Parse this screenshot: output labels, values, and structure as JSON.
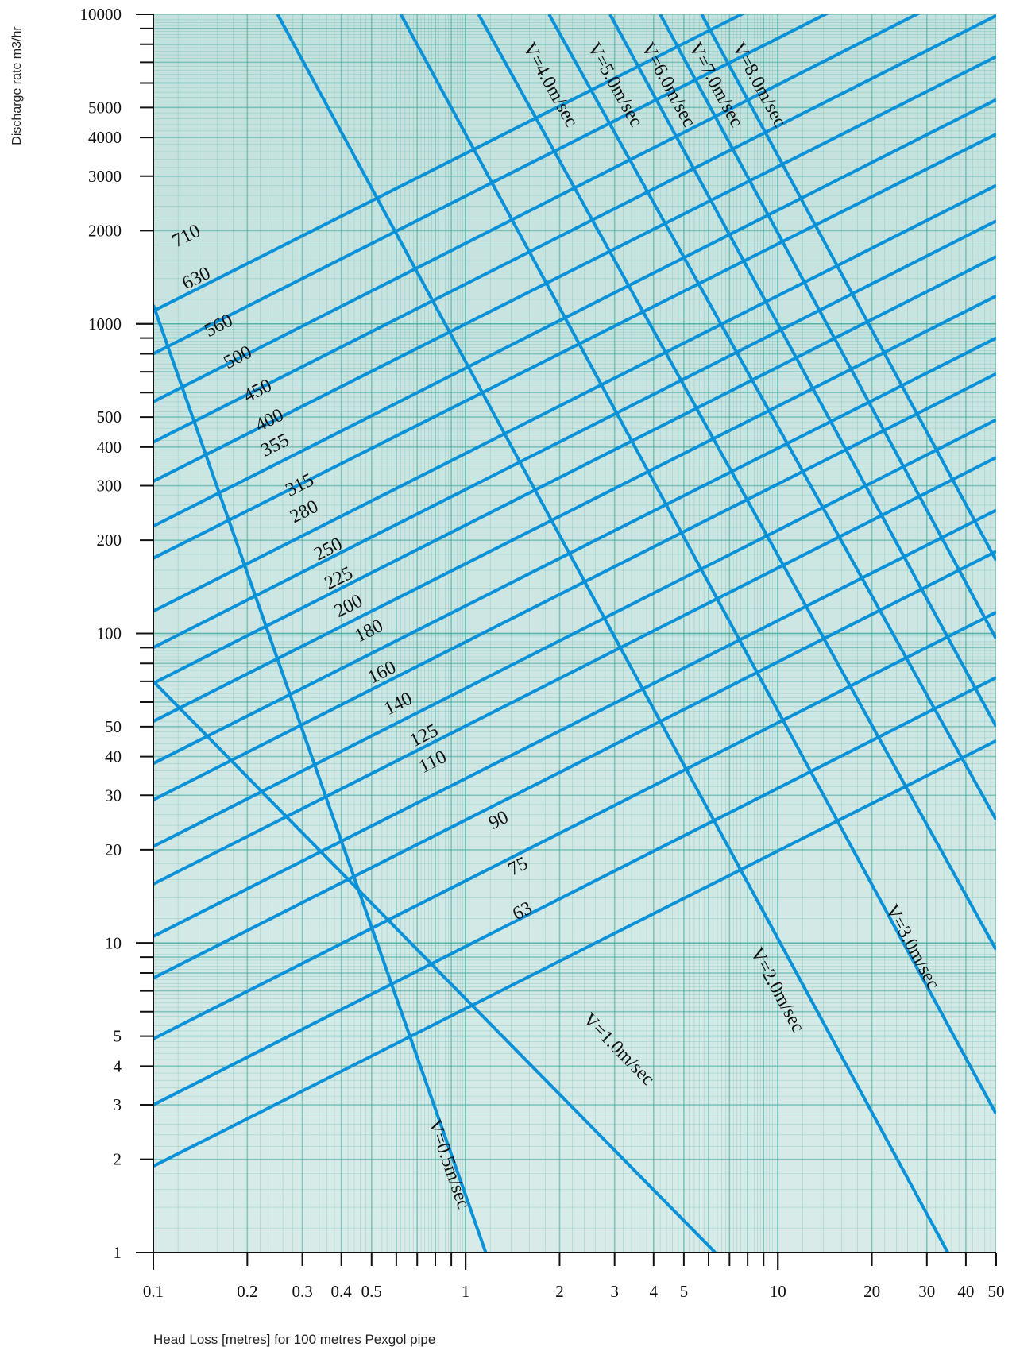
{
  "chart_data": {
    "type": "line",
    "xscale": "log",
    "yscale": "log",
    "xlim": [
      0.1,
      50
    ],
    "ylim": [
      1,
      10000
    ],
    "xlabel": "Head Loss [metres] for 100 metres Pexgol pipe",
    "ylabel": "Discharge rate m3/hr",
    "grid": true,
    "x_ticks": [
      {
        "v": 0.1,
        "label": "0.1"
      },
      {
        "v": 0.2,
        "label": "0.2"
      },
      {
        "v": 0.3,
        "label": "0.3"
      },
      {
        "v": 0.4,
        "label": "0.4"
      },
      {
        "v": 0.5,
        "label": "0.5"
      },
      {
        "v": 1,
        "label": "1"
      },
      {
        "v": 2,
        "label": "2"
      },
      {
        "v": 3,
        "label": "3"
      },
      {
        "v": 4,
        "label": "4"
      },
      {
        "v": 5,
        "label": "5"
      },
      {
        "v": 10,
        "label": "10"
      },
      {
        "v": 20,
        "label": "20"
      },
      {
        "v": 30,
        "label": "30"
      },
      {
        "v": 40,
        "label": "40"
      },
      {
        "v": 50,
        "label": "50"
      }
    ],
    "y_ticks": [
      {
        "v": 1,
        "label": "1"
      },
      {
        "v": 2,
        "label": "2"
      },
      {
        "v": 3,
        "label": "3"
      },
      {
        "v": 4,
        "label": "4"
      },
      {
        "v": 5,
        "label": "5"
      },
      {
        "v": 10,
        "label": "10"
      },
      {
        "v": 20,
        "label": "20"
      },
      {
        "v": 30,
        "label": "30"
      },
      {
        "v": 40,
        "label": "40"
      },
      {
        "v": 50,
        "label": "50"
      },
      {
        "v": 100,
        "label": "100"
      },
      {
        "v": 200,
        "label": "200"
      },
      {
        "v": 300,
        "label": "300"
      },
      {
        "v": 400,
        "label": "400"
      },
      {
        "v": 500,
        "label": "500"
      },
      {
        "v": 1000,
        "label": "1000"
      },
      {
        "v": 2000,
        "label": "2000"
      },
      {
        "v": 3000,
        "label": "3000"
      },
      {
        "v": 4000,
        "label": "4000"
      },
      {
        "v": 5000,
        "label": "5000"
      },
      {
        "v": 10000,
        "label": "10000"
      }
    ],
    "pipe_series": [
      {
        "name": "710",
        "points": [
          [
            0.1,
            1100
          ],
          [
            50,
            26000
          ]
        ],
        "label_at": [
          0.13,
          1850
        ]
      },
      {
        "name": "630",
        "points": [
          [
            0.1,
            800
          ],
          [
            50,
            19000
          ]
        ],
        "label_at": [
          0.14,
          1350
        ]
      },
      {
        "name": "560",
        "points": [
          [
            0.1,
            560
          ],
          [
            50,
            13500
          ]
        ],
        "label_at": [
          0.165,
          950
        ]
      },
      {
        "name": "500",
        "points": [
          [
            0.1,
            415
          ],
          [
            50,
            9900
          ]
        ],
        "label_at": [
          0.19,
          750
        ]
      },
      {
        "name": "450",
        "points": [
          [
            0.1,
            310
          ],
          [
            50,
            7300
          ]
        ],
        "label_at": [
          0.22,
          585
        ]
      },
      {
        "name": "400",
        "points": [
          [
            0.1,
            222
          ],
          [
            50,
            5300
          ]
        ],
        "label_at": [
          0.24,
          470
        ]
      },
      {
        "name": "355",
        "points": [
          [
            0.1,
            175
          ],
          [
            50,
            4100
          ]
        ],
        "label_at": [
          0.25,
          390
        ]
      },
      {
        "name": "315",
        "points": [
          [
            0.1,
            118
          ],
          [
            50,
            2800
          ]
        ],
        "label_at": [
          0.3,
          290
        ]
      },
      {
        "name": "280",
        "points": [
          [
            0.1,
            90
          ],
          [
            50,
            2150
          ]
        ],
        "label_at": [
          0.31,
          238
        ]
      },
      {
        "name": "250",
        "points": [
          [
            0.1,
            69
          ],
          [
            50,
            1650
          ]
        ],
        "label_at": [
          0.37,
          180
        ]
      },
      {
        "name": "225",
        "points": [
          [
            0.1,
            52
          ],
          [
            50,
            1230
          ]
        ],
        "label_at": [
          0.4,
          145
        ]
      },
      {
        "name": "200",
        "points": [
          [
            0.1,
            38
          ],
          [
            50,
            900
          ]
        ],
        "label_at": [
          0.43,
          118
        ]
      },
      {
        "name": "180",
        "points": [
          [
            0.1,
            29
          ],
          [
            50,
            690
          ]
        ],
        "label_at": [
          0.5,
          98
        ]
      },
      {
        "name": "160",
        "points": [
          [
            0.1,
            20.5
          ],
          [
            50,
            490
          ]
        ],
        "label_at": [
          0.55,
          72
        ]
      },
      {
        "name": "140",
        "points": [
          [
            0.1,
            15.5
          ],
          [
            50,
            370
          ]
        ],
        "label_at": [
          0.62,
          57
        ]
      },
      {
        "name": "125",
        "points": [
          [
            0.1,
            10.5
          ],
          [
            50,
            250
          ]
        ],
        "label_at": [
          0.75,
          45
        ]
      },
      {
        "name": "110",
        "points": [
          [
            0.1,
            7.7
          ],
          [
            50,
            184
          ]
        ],
        "label_at": [
          0.8,
          37
        ]
      },
      {
        "name": "90",
        "points": [
          [
            0.1,
            4.9
          ],
          [
            50,
            117
          ]
        ],
        "label_at": [
          1.3,
          24
        ]
      },
      {
        "name": "75",
        "points": [
          [
            0.1,
            3.0
          ],
          [
            50,
            72
          ]
        ],
        "label_at": [
          1.5,
          17
        ]
      },
      {
        "name": "63",
        "points": [
          [
            0.1,
            1.9
          ],
          [
            50,
            45
          ]
        ],
        "label_at": [
          1.55,
          12.2
        ]
      }
    ],
    "velocity_series": [
      {
        "name": "V=0.5m/sec",
        "points": [
          [
            0.1,
            1150
          ],
          [
            1.16,
            1
          ]
        ],
        "label_at": [
          0.85,
          1.9
        ]
      },
      {
        "name": "V=1.0m/sec",
        "points": [
          [
            0.1,
            70
          ],
          [
            6.3,
            1
          ]
        ],
        "label_at": [
          3.0,
          4.4
        ]
      },
      {
        "name": "V=2.0m/sec",
        "points": [
          [
            0.25,
            10000
          ],
          [
            35,
            1
          ]
        ],
        "label_at": [
          9.6,
          6.9
        ]
      },
      {
        "name": "V=3.0m/sec",
        "points": [
          [
            0.62,
            10000
          ],
          [
            50,
            2.8
          ]
        ],
        "label_at": [
          26,
          9.5
        ]
      },
      {
        "name": "V=4.0m/sec",
        "points": [
          [
            1.1,
            10000
          ],
          [
            50,
            9.5
          ]
        ],
        "label_at": [
          1.8,
          5800
        ]
      },
      {
        "name": "V=5.0m/sec",
        "points": [
          [
            1.85,
            10000
          ],
          [
            50,
            25
          ]
        ],
        "label_at": [
          2.9,
          5800
        ]
      },
      {
        "name": "V=6.0m/sec",
        "points": [
          [
            2.9,
            10000
          ],
          [
            50,
            50
          ]
        ],
        "label_at": [
          4.3,
          5800
        ]
      },
      {
        "name": "V=7.0m/sec",
        "points": [
          [
            4.2,
            10000
          ],
          [
            50,
            96
          ]
        ],
        "label_at": [
          6.1,
          5800
        ]
      },
      {
        "name": "V=8.0m/sec",
        "points": [
          [
            5.7,
            10000
          ],
          [
            50,
            172
          ]
        ],
        "label_at": [
          8.4,
          5800
        ]
      }
    ],
    "colors": {
      "background": "#c3e1dd",
      "grid": "#3ba69a",
      "series_line": "#0a91d8",
      "axis": "#111111"
    }
  }
}
